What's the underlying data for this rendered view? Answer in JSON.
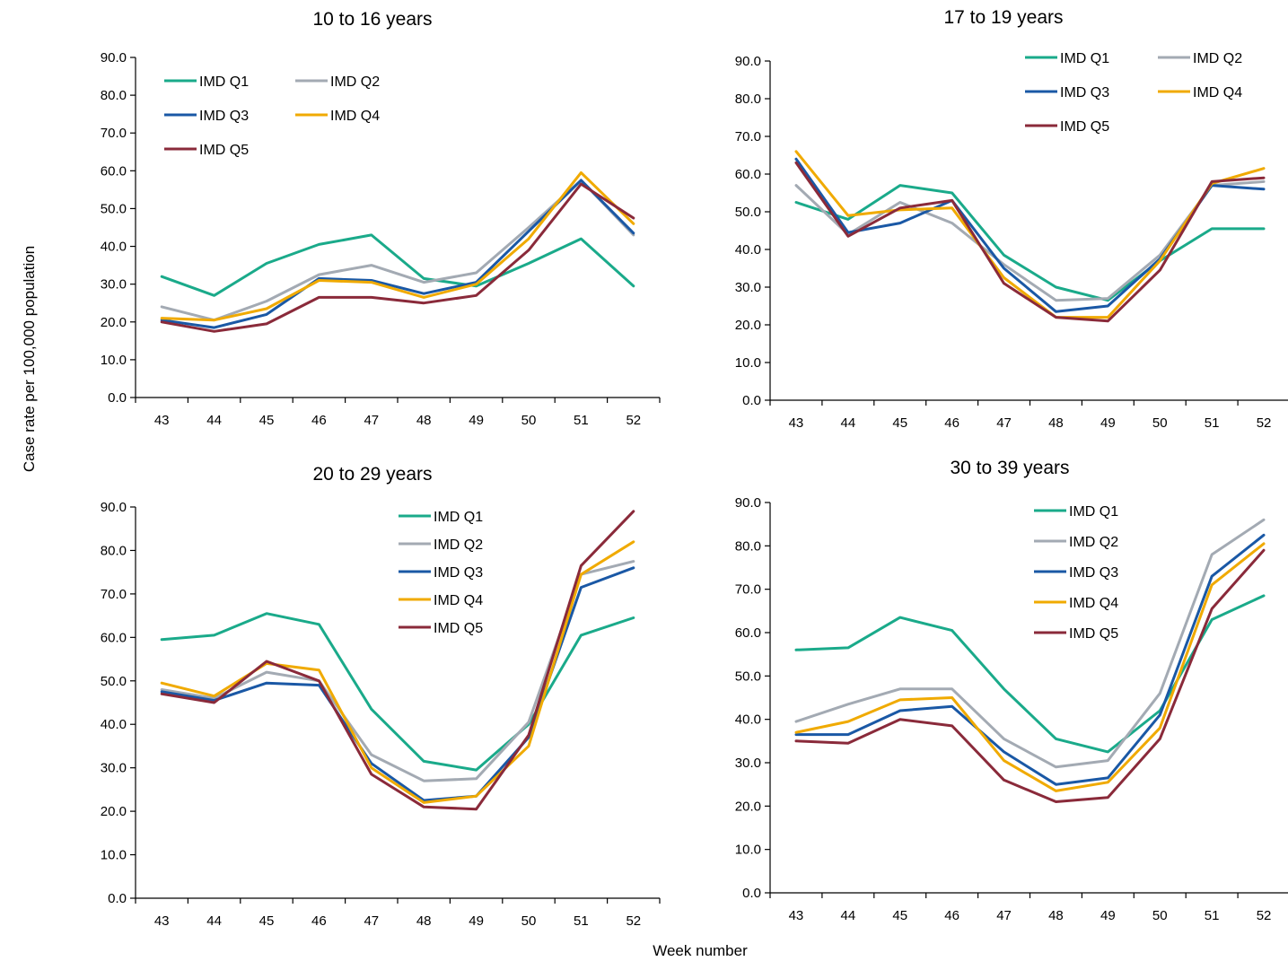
{
  "figure": {
    "ylabel": "Case rate per 100,000 population",
    "xlabel": "Week number"
  },
  "colors": {
    "IMD Q1": "#1aaa8a",
    "IMD Q2": "#a3aab3",
    "IMD Q3": "#1a58a5",
    "IMD Q4": "#f0aa00",
    "IMD Q5": "#8a2a3a"
  },
  "chart_data": [
    {
      "type": "line",
      "title": "10 to 16 years",
      "categories": [
        "43",
        "44",
        "45",
        "46",
        "47",
        "48",
        "49",
        "50",
        "51",
        "52"
      ],
      "ylim": [
        0,
        90
      ],
      "yticks": [
        "0.0",
        "10.0",
        "20.0",
        "30.0",
        "40.0",
        "50.0",
        "60.0",
        "70.0",
        "80.0",
        "90.0"
      ],
      "legend": {
        "placement": "top-left",
        "columns": 2
      },
      "series": [
        {
          "name": "IMD Q1",
          "values": [
            32.0,
            27.0,
            35.5,
            40.5,
            43.0,
            31.5,
            29.5,
            35.5,
            42.0,
            29.5
          ]
        },
        {
          "name": "IMD Q2",
          "values": [
            24.0,
            20.5,
            25.5,
            32.5,
            35.0,
            30.5,
            33.0,
            45.0,
            57.5,
            43.0
          ]
        },
        {
          "name": "IMD Q3",
          "values": [
            20.5,
            18.5,
            22.0,
            31.5,
            31.0,
            27.5,
            30.5,
            44.0,
            57.5,
            43.5
          ]
        },
        {
          "name": "IMD Q4",
          "values": [
            21.0,
            20.5,
            23.5,
            31.0,
            30.5,
            26.5,
            30.0,
            42.0,
            59.5,
            46.0
          ]
        },
        {
          "name": "IMD Q5",
          "values": [
            20.0,
            17.5,
            19.5,
            26.5,
            26.5,
            25.0,
            27.0,
            39.0,
            56.5,
            47.5
          ]
        }
      ]
    },
    {
      "type": "line",
      "title": "17 to 19 years",
      "categories": [
        "43",
        "44",
        "45",
        "46",
        "47",
        "48",
        "49",
        "50",
        "51",
        "52"
      ],
      "ylim": [
        0,
        90
      ],
      "yticks": [
        "0.0",
        "10.0",
        "20.0",
        "30.0",
        "40.0",
        "50.0",
        "60.0",
        "70.0",
        "80.0",
        "90.0"
      ],
      "legend": {
        "placement": "top-right",
        "columns": 2
      },
      "series": [
        {
          "name": "IMD Q1",
          "values": [
            52.5,
            48.0,
            57.0,
            55.0,
            38.5,
            30.0,
            26.5,
            37.0,
            45.5,
            45.5
          ]
        },
        {
          "name": "IMD Q2",
          "values": [
            57.0,
            44.0,
            52.5,
            47.0,
            36.0,
            26.5,
            27.0,
            38.5,
            57.0,
            58.0
          ]
        },
        {
          "name": "IMD Q3",
          "values": [
            64.0,
            44.5,
            47.0,
            53.0,
            35.0,
            23.5,
            25.0,
            37.5,
            57.0,
            56.0
          ]
        },
        {
          "name": "IMD Q4",
          "values": [
            66.0,
            49.0,
            50.5,
            51.0,
            32.5,
            22.0,
            22.0,
            37.0,
            57.5,
            61.5
          ]
        },
        {
          "name": "IMD Q5",
          "values": [
            63.0,
            43.5,
            51.0,
            53.0,
            31.0,
            22.0,
            21.0,
            34.5,
            58.0,
            59.0
          ]
        }
      ]
    },
    {
      "type": "line",
      "title": "20 to 29 years",
      "categories": [
        "43",
        "44",
        "45",
        "46",
        "47",
        "48",
        "49",
        "50",
        "51",
        "52"
      ],
      "ylim": [
        0,
        90
      ],
      "yticks": [
        "0.0",
        "10.0",
        "20.0",
        "30.0",
        "40.0",
        "50.0",
        "60.0",
        "70.0",
        "80.0",
        "90.0"
      ],
      "legend": {
        "placement": "top-right",
        "columns": 1
      },
      "series": [
        {
          "name": "IMD Q1",
          "values": [
            59.5,
            60.5,
            65.5,
            63.0,
            43.5,
            31.5,
            29.5,
            40.0,
            60.5,
            64.5
          ]
        },
        {
          "name": "IMD Q2",
          "values": [
            48.0,
            46.0,
            52.0,
            50.0,
            33.0,
            27.0,
            27.5,
            40.5,
            74.5,
            77.5
          ]
        },
        {
          "name": "IMD Q3",
          "values": [
            47.5,
            45.5,
            49.5,
            49.0,
            31.0,
            22.5,
            23.5,
            37.0,
            71.5,
            76.0
          ]
        },
        {
          "name": "IMD Q4",
          "values": [
            49.5,
            46.5,
            54.0,
            52.5,
            30.0,
            22.0,
            23.5,
            35.0,
            74.5,
            82.0
          ]
        },
        {
          "name": "IMD Q5",
          "values": [
            47.0,
            45.0,
            54.5,
            50.0,
            28.5,
            21.0,
            20.5,
            37.5,
            76.5,
            89.0
          ]
        }
      ]
    },
    {
      "type": "line",
      "title": "30 to 39 years",
      "categories": [
        "43",
        "44",
        "45",
        "46",
        "47",
        "48",
        "49",
        "50",
        "51",
        "52"
      ],
      "ylim": [
        0,
        90
      ],
      "yticks": [
        "0.0",
        "10.0",
        "20.0",
        "30.0",
        "40.0",
        "50.0",
        "60.0",
        "70.0",
        "80.0",
        "90.0"
      ],
      "legend": {
        "placement": "top-right",
        "columns": 1
      },
      "series": [
        {
          "name": "IMD Q1",
          "values": [
            56.0,
            56.5,
            63.5,
            60.5,
            47.0,
            35.5,
            32.5,
            42.0,
            63.0,
            68.5
          ]
        },
        {
          "name": "IMD Q2",
          "values": [
            39.5,
            43.5,
            47.0,
            47.0,
            35.5,
            29.0,
            30.5,
            46.0,
            78.0,
            86.0
          ]
        },
        {
          "name": "IMD Q3",
          "values": [
            36.5,
            36.5,
            42.0,
            43.0,
            32.5,
            25.0,
            26.5,
            41.0,
            73.0,
            82.5
          ]
        },
        {
          "name": "IMD Q4",
          "values": [
            37.0,
            39.5,
            44.5,
            45.0,
            30.5,
            23.5,
            25.5,
            38.0,
            71.0,
            80.5
          ]
        },
        {
          "name": "IMD Q5",
          "values": [
            35.0,
            34.5,
            40.0,
            38.5,
            26.0,
            21.0,
            22.0,
            35.5,
            65.5,
            79.0
          ]
        }
      ]
    }
  ]
}
